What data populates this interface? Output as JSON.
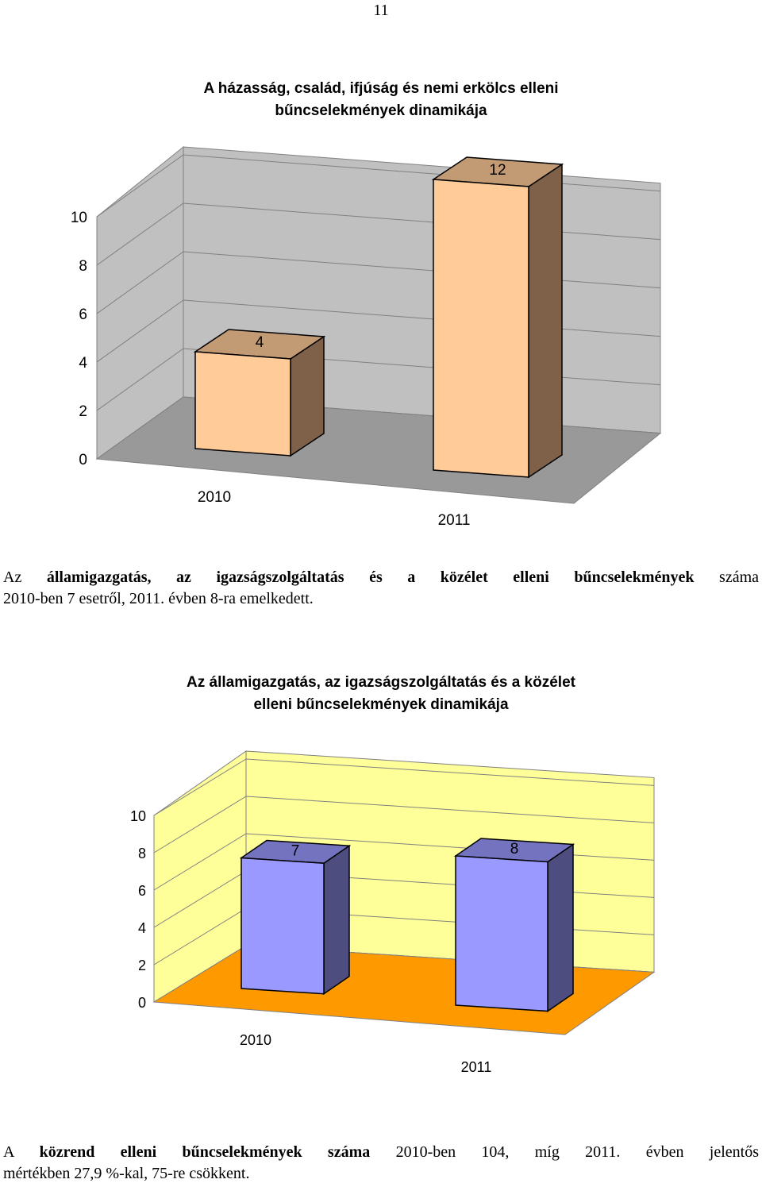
{
  "page_number": "11",
  "chart1": {
    "title_line1": "A házasság, család, ifjúság és nemi erkölcs elleni",
    "title_line2": "bűncselekmények dinamikája"
  },
  "paragraph1": {
    "lead": "Az",
    "bold": "államigazgatás, az igazságszolgáltatás és a közélet elleni bűncselekmények",
    "rest_line1": "száma",
    "line2": "2010-ben 7 esetről, 2011. évben 8-ra emelkedett."
  },
  "chart2": {
    "title_line1": "Az államigazgatás, az igazságszolgáltatás és a közélet",
    "title_line2": "elleni bűncselekmények dinamikája"
  },
  "paragraph2": {
    "lead": "A",
    "bold": "közrend elleni bűncselekmények száma",
    "rest_line1": "2010-ben 104, míg 2011. évben jelentős",
    "line2": "mértékben 27,9 %-kal, 75-re csökkent."
  },
  "chart_data": [
    {
      "type": "bar",
      "title": "A házasság, család, ifjúság és nemi erkölcs elleni bűncselekmények dinamikája",
      "categories": [
        "2010",
        "2011"
      ],
      "values": [
        4,
        12
      ],
      "data_labels": [
        "4",
        "12"
      ],
      "y_ticks": [
        "0",
        "2",
        "4",
        "6",
        "8",
        "10"
      ],
      "ylim": [
        0,
        10
      ],
      "grid": true,
      "colors": {
        "bar_front": "#ffcc99",
        "bar_top": "#c29a73",
        "bar_side": "#7f6048",
        "wall": "#c0c0c0",
        "floor": "#999999"
      }
    },
    {
      "type": "bar",
      "title": "Az államigazgatás, az igazságszolgáltatás és a közélet elleni bűncselekmények dinamikája",
      "categories": [
        "2010",
        "2011"
      ],
      "values": [
        7,
        8
      ],
      "data_labels": [
        "7",
        "8"
      ],
      "y_ticks": [
        "0",
        "2",
        "4",
        "6",
        "8",
        "10"
      ],
      "ylim": [
        0,
        10
      ],
      "grid": true,
      "colors": {
        "bar_front": "#9999ff",
        "bar_top": "#7373bf",
        "bar_side": "#4d4d80",
        "wall": "#ffff99",
        "floor": "#ff9900"
      }
    }
  ]
}
